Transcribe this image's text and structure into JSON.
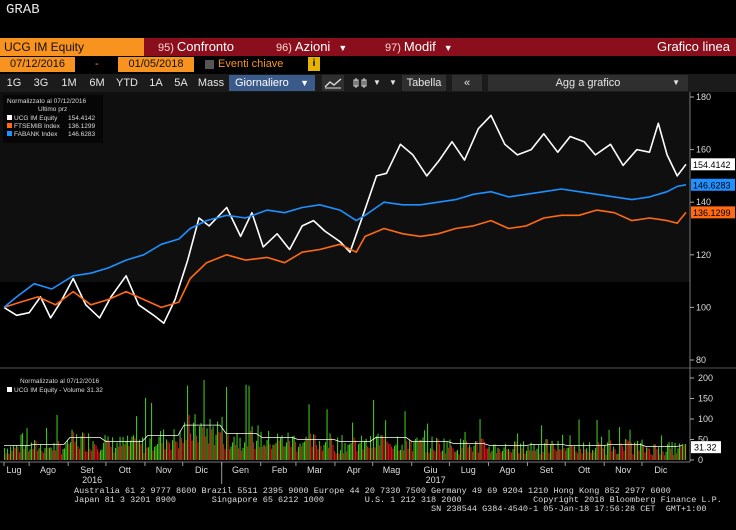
{
  "window": {
    "title": "GRAB"
  },
  "toolbar": {
    "security": "UCG IM Equity",
    "menus": [
      {
        "num": "95)",
        "label": "Confronto"
      },
      {
        "num": "96)",
        "label": "Azioni"
      },
      {
        "num": "97)",
        "label": "Modif"
      }
    ],
    "chart_type": "Grafico linea"
  },
  "range": {
    "start": "07/12/2016",
    "end": "01/05/2018",
    "sep": "-",
    "events_label": "Eventi chiave",
    "info": "i"
  },
  "periods": [
    "1G",
    "3G",
    "1M",
    "6M",
    "YTD",
    "1A",
    "5A",
    "Mass"
  ],
  "period_select": "Giornaliero",
  "controls": {
    "table": "Tabella",
    "add": "Agg a grafico"
  },
  "legend": {
    "title": "Normalizzato al 07/12/2016",
    "subtitle": "Ultimo prz",
    "items": [
      {
        "name": "UCG IM Equity",
        "value": "154.4142",
        "color": "#ffffff"
      },
      {
        "name": "FTSEMIB Index",
        "value": "136.1299",
        "color": "#ff6a13"
      },
      {
        "name": "FABANK Index",
        "value": "146.6283",
        "color": "#1e90ff"
      }
    ]
  },
  "volume_legend": {
    "title": "Normalizzato al 07/12/2016",
    "item": "UCG IM Equity - Volume 31.32",
    "value": "31.32"
  },
  "x_axis": {
    "months": [
      "Lug",
      "Ago",
      "Set",
      "Ott",
      "Nov",
      "Dic",
      "Gen",
      "Feb",
      "Mar",
      "Apr",
      "Mag",
      "Giu",
      "Lug",
      "Ago",
      "Set",
      "Ott",
      "Nov",
      "Dic"
    ],
    "years": [
      "2016",
      "2017"
    ]
  },
  "footer": {
    "line1": "Australia 61 2 9777 8600 Brazil 5511 2395 9000 Europe 44 20 7330 7500 Germany 49 69 9204 1210 Hong Kong 852 2977 6000",
    "line2": "Japan 81 3 3201 8900       Singapore 65 6212 1000        U.S. 1 212 318 2000              Copyright 2018 Bloomberg Finance L.P.",
    "line3": "                                                                      SN 238544 G384-4540-1 05-Jan-18 17:56:28 CET  GMT+1:00"
  },
  "chart_data": [
    {
      "type": "line",
      "title": "",
      "ylim": [
        80,
        180
      ],
      "y_ticks": [
        80,
        100,
        120,
        140,
        160,
        180
      ],
      "x_range": [
        "2016-07-12",
        "2018-01-05"
      ],
      "grid": false,
      "series": [
        {
          "name": "UCG IM Equity",
          "color": "#ffffff",
          "points": [
            [
              "2016-07-12",
              100
            ],
            [
              "2016-07-22",
              97
            ],
            [
              "2016-08-01",
              98
            ],
            [
              "2016-08-10",
              104
            ],
            [
              "2016-08-18",
              96
            ],
            [
              "2016-08-26",
              102
            ],
            [
              "2016-09-05",
              111
            ],
            [
              "2016-09-15",
              101
            ],
            [
              "2016-09-26",
              96
            ],
            [
              "2016-10-05",
              104
            ],
            [
              "2016-10-17",
              112
            ],
            [
              "2016-10-27",
              101
            ],
            [
              "2016-11-08",
              97
            ],
            [
              "2016-11-16",
              94
            ],
            [
              "2016-11-25",
              103
            ],
            [
              "2016-12-05",
              118
            ],
            [
              "2016-12-14",
              134
            ],
            [
              "2016-12-22",
              131
            ],
            [
              "2017-01-05",
              138
            ],
            [
              "2017-01-16",
              127
            ],
            [
              "2017-01-25",
              136
            ],
            [
              "2017-02-03",
              123
            ],
            [
              "2017-02-14",
              128
            ],
            [
              "2017-02-24",
              122
            ],
            [
              "2017-03-06",
              131
            ],
            [
              "2017-03-15",
              133
            ],
            [
              "2017-03-24",
              129
            ],
            [
              "2017-04-05",
              125
            ],
            [
              "2017-04-13",
              121
            ],
            [
              "2017-04-24",
              136
            ],
            [
              "2017-05-04",
              150
            ],
            [
              "2017-05-12",
              151
            ],
            [
              "2017-05-23",
              162
            ],
            [
              "2017-06-02",
              158
            ],
            [
              "2017-06-13",
              150
            ],
            [
              "2017-06-23",
              156
            ],
            [
              "2017-07-03",
              163
            ],
            [
              "2017-07-13",
              156
            ],
            [
              "2017-07-24",
              168
            ],
            [
              "2017-08-03",
              173
            ],
            [
              "2017-08-14",
              162
            ],
            [
              "2017-08-24",
              158
            ],
            [
              "2017-09-04",
              160
            ],
            [
              "2017-09-14",
              166
            ],
            [
              "2017-09-25",
              159
            ],
            [
              "2017-10-05",
              165
            ],
            [
              "2017-10-16",
              163
            ],
            [
              "2017-10-25",
              158
            ],
            [
              "2017-11-06",
              162
            ],
            [
              "2017-11-16",
              154
            ],
            [
              "2017-11-27",
              160
            ],
            [
              "2017-12-07",
              159
            ],
            [
              "2017-12-14",
              170
            ],
            [
              "2017-12-21",
              158
            ],
            [
              "2017-12-29",
              150
            ],
            [
              "2018-01-05",
              154.4142
            ]
          ]
        },
        {
          "name": "FTSEMIB Index",
          "color": "#ff6a13",
          "points": [
            [
              "2016-07-12",
              100
            ],
            [
              "2016-07-25",
              102
            ],
            [
              "2016-08-08",
              104
            ],
            [
              "2016-08-22",
              101
            ],
            [
              "2016-09-05",
              106
            ],
            [
              "2016-09-19",
              101
            ],
            [
              "2016-10-03",
              103
            ],
            [
              "2016-10-17",
              106
            ],
            [
              "2016-10-31",
              103
            ],
            [
              "2016-11-14",
              100
            ],
            [
              "2016-11-28",
              102
            ],
            [
              "2016-12-07",
              111
            ],
            [
              "2016-12-20",
              117
            ],
            [
              "2017-01-05",
              120
            ],
            [
              "2017-01-20",
              118
            ],
            [
              "2017-02-06",
              119
            ],
            [
              "2017-02-20",
              117
            ],
            [
              "2017-03-06",
              121
            ],
            [
              "2017-03-20",
              122
            ],
            [
              "2017-04-05",
              124
            ],
            [
              "2017-04-18",
              121
            ],
            [
              "2017-04-25",
              127
            ],
            [
              "2017-05-10",
              130
            ],
            [
              "2017-05-25",
              128
            ],
            [
              "2017-06-08",
              127
            ],
            [
              "2017-06-22",
              128
            ],
            [
              "2017-07-06",
              130
            ],
            [
              "2017-07-20",
              131
            ],
            [
              "2017-08-03",
              133
            ],
            [
              "2017-08-17",
              130
            ],
            [
              "2017-08-31",
              131
            ],
            [
              "2017-09-14",
              134
            ],
            [
              "2017-09-28",
              135
            ],
            [
              "2017-10-12",
              135
            ],
            [
              "2017-10-26",
              137
            ],
            [
              "2017-11-09",
              136
            ],
            [
              "2017-11-23",
              133
            ],
            [
              "2017-12-07",
              134
            ],
            [
              "2017-12-21",
              133
            ],
            [
              "2017-12-29",
              132
            ],
            [
              "2018-01-05",
              136.1299
            ]
          ]
        },
        {
          "name": "FABANK Index",
          "color": "#1e90ff",
          "points": [
            [
              "2016-07-12",
              100
            ],
            [
              "2016-07-22",
              104
            ],
            [
              "2016-08-05",
              109
            ],
            [
              "2016-08-19",
              107
            ],
            [
              "2016-09-05",
              112
            ],
            [
              "2016-09-19",
              113
            ],
            [
              "2016-10-03",
              115
            ],
            [
              "2016-10-17",
              118
            ],
            [
              "2016-10-31",
              120
            ],
            [
              "2016-11-14",
              124
            ],
            [
              "2016-11-28",
              126
            ],
            [
              "2016-12-07",
              130
            ],
            [
              "2016-12-20",
              133
            ],
            [
              "2017-01-05",
              135
            ],
            [
              "2017-01-20",
              134
            ],
            [
              "2017-02-06",
              137
            ],
            [
              "2017-02-20",
              136
            ],
            [
              "2017-03-06",
              138
            ],
            [
              "2017-03-20",
              139
            ],
            [
              "2017-04-05",
              137
            ],
            [
              "2017-04-18",
              133
            ],
            [
              "2017-04-25",
              135
            ],
            [
              "2017-05-10",
              140
            ],
            [
              "2017-05-25",
              139
            ],
            [
              "2017-06-08",
              139
            ],
            [
              "2017-06-22",
              140
            ],
            [
              "2017-07-06",
              141
            ],
            [
              "2017-07-20",
              143
            ],
            [
              "2017-08-03",
              144
            ],
            [
              "2017-08-17",
              142
            ],
            [
              "2017-08-31",
              143
            ],
            [
              "2017-09-14",
              144
            ],
            [
              "2017-09-28",
              145
            ],
            [
              "2017-10-12",
              144
            ],
            [
              "2017-10-26",
              143
            ],
            [
              "2017-11-09",
              142
            ],
            [
              "2017-11-23",
              141
            ],
            [
              "2017-12-07",
              142
            ],
            [
              "2017-12-21",
              144
            ],
            [
              "2017-12-29",
              146
            ],
            [
              "2018-01-05",
              146.6283
            ]
          ]
        }
      ]
    },
    {
      "type": "bar",
      "title": "",
      "ylim": [
        0,
        200
      ],
      "y_ticks": [
        0,
        50,
        100,
        150,
        200
      ],
      "x_range": [
        "2016-07-12",
        "2018-01-05"
      ],
      "series": [
        {
          "name": "UCG IM Equity - Volume",
          "monthly_levels": [
            [
              "2016-07",
              35
            ],
            [
              "2016-08",
              38
            ],
            [
              "2016-09",
              55
            ],
            [
              "2016-10",
              45
            ],
            [
              "2016-11",
              60
            ],
            [
              "2016-12",
              85
            ],
            [
              "2017-01",
              65
            ],
            [
              "2017-02",
              55
            ],
            [
              "2017-03",
              50
            ],
            [
              "2017-04",
              45
            ],
            [
              "2017-05",
              55
            ],
            [
              "2017-06",
              45
            ],
            [
              "2017-07",
              40
            ],
            [
              "2017-08",
              35
            ],
            [
              "2017-09",
              38
            ],
            [
              "2017-10",
              35
            ],
            [
              "2017-11",
              38
            ],
            [
              "2017-12",
              33
            ]
          ],
          "last": 31.32
        }
      ]
    }
  ]
}
